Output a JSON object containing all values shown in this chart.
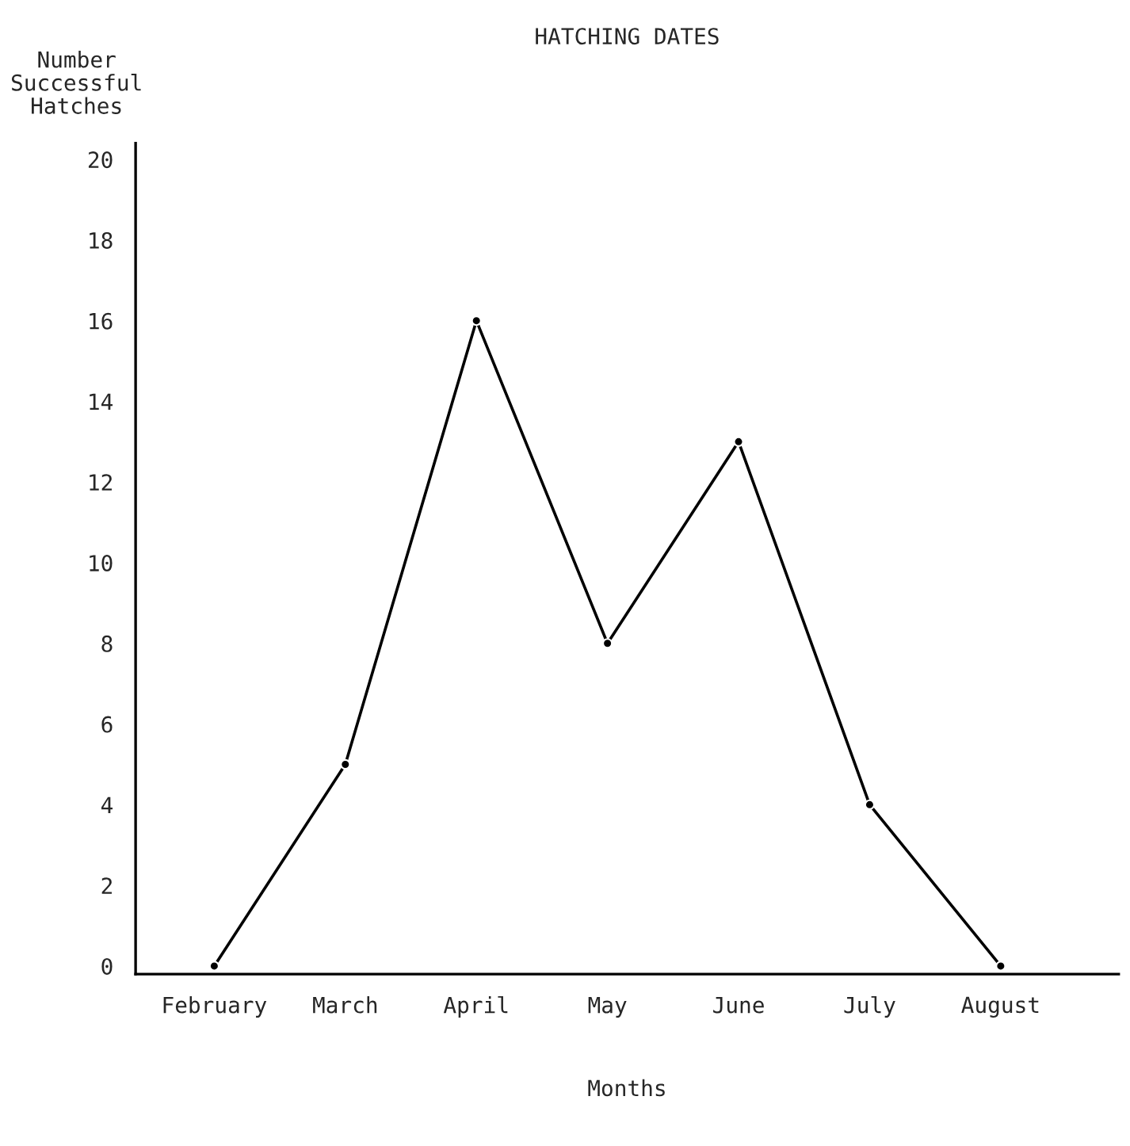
{
  "chart_data": {
    "type": "line",
    "title": "HATCHING DATES",
    "xlabel": "Months",
    "ylabel": "Number\nSuccessful\nHatches",
    "categories": [
      "February",
      "March",
      "April",
      "May",
      "June",
      "July",
      "August"
    ],
    "series": [
      {
        "color": "#000000",
        "values": [
          0,
          5,
          16,
          8,
          13,
          4,
          0
        ]
      }
    ],
    "ylim": [
      -0.2,
      20.4
    ],
    "yticks": [
      0,
      2,
      4,
      6,
      8,
      10,
      12,
      14,
      16,
      18,
      20
    ],
    "grid": false,
    "marker": "circle",
    "line_style": "solid"
  }
}
